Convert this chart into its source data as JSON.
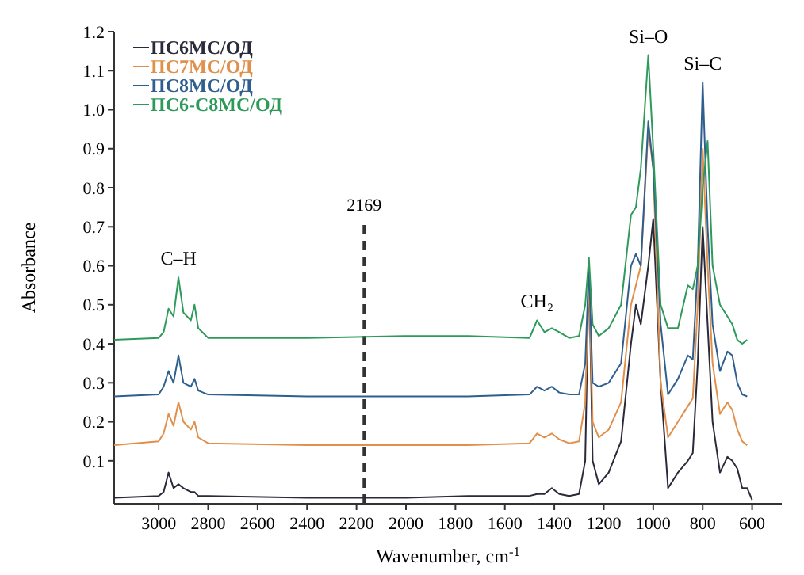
{
  "chart_data": {
    "type": "line",
    "xlabel": "Wavenumber, cm$^{-1}$",
    "ylabel": "Absorbance",
    "xlim": [
      3180,
      480
    ],
    "xticks": [
      3000,
      2800,
      2600,
      2400,
      2200,
      2000,
      1800,
      1600,
      1400,
      1200,
      1000,
      800,
      600
    ],
    "ylim": [
      -0.01,
      1.2
    ],
    "yticks": [
      0.1,
      0.2,
      0.3,
      0.4,
      0.5,
      0.6,
      0.7,
      0.8,
      0.9,
      {
        "value": 1,
        "label": "1.0"
      },
      1.1,
      1.2
    ],
    "legend": "top left",
    "line_style": "solid",
    "ref_lines": [
      {
        "axis": "x",
        "value": 2169,
        "label": "2169",
        "color": "#333333",
        "line_style": "dashed"
      }
    ],
    "annotations": [
      {
        "text": "C–H",
        "x": 2920,
        "y": 0.57
      },
      {
        "text": "CH₂",
        "x": 1470,
        "y": 0.46
      },
      {
        "text": "Si–O",
        "x": 1020,
        "y": 1.14
      },
      {
        "text": "Si–C",
        "x": 800,
        "y": 1.07
      }
    ],
    "series": [
      {
        "name": "ПС6МС/ОД",
        "color": "#2a2a3a",
        "x": [
          3180,
          3000,
          2980,
          2960,
          2940,
          2920,
          2900,
          2870,
          2855,
          2840,
          2800,
          2400,
          2000,
          1750,
          1500,
          1470,
          1440,
          1410,
          1380,
          1340,
          1300,
          1275,
          1260,
          1245,
          1220,
          1180,
          1130,
          1090,
          1070,
          1050,
          1020,
          1000,
          970,
          940,
          900,
          860,
          840,
          820,
          800,
          780,
          760,
          730,
          700,
          680,
          660,
          640,
          620,
          600
        ],
        "values": [
          0.005,
          0.01,
          0.02,
          0.07,
          0.03,
          0.04,
          0.03,
          0.02,
          0.02,
          0.01,
          0.01,
          0.005,
          0.005,
          0.01,
          0.01,
          0.015,
          0.015,
          0.03,
          0.015,
          0.01,
          0.015,
          0.1,
          0.6,
          0.1,
          0.04,
          0.07,
          0.15,
          0.4,
          0.5,
          0.45,
          0.6,
          0.72,
          0.3,
          0.03,
          0.07,
          0.1,
          0.12,
          0.35,
          0.7,
          0.45,
          0.2,
          0.07,
          0.11,
          0.1,
          0.08,
          0.03,
          0.03,
          0.0
        ]
      },
      {
        "name": "ПС7МС/ОД",
        "color": "#e0904a",
        "x": [
          3180,
          3000,
          2980,
          2960,
          2940,
          2920,
          2900,
          2870,
          2855,
          2840,
          2800,
          2400,
          2000,
          1750,
          1500,
          1470,
          1440,
          1410,
          1380,
          1340,
          1300,
          1275,
          1260,
          1245,
          1220,
          1180,
          1130,
          1090,
          1070,
          1050,
          1020,
          1000,
          970,
          940,
          900,
          860,
          840,
          820,
          800,
          780,
          760,
          730,
          700,
          680,
          660,
          640,
          620
        ],
        "values": [
          0.14,
          0.15,
          0.17,
          0.22,
          0.19,
          0.25,
          0.2,
          0.18,
          0.2,
          0.16,
          0.145,
          0.14,
          0.14,
          0.14,
          0.145,
          0.17,
          0.16,
          0.17,
          0.155,
          0.145,
          0.15,
          0.25,
          0.58,
          0.2,
          0.16,
          0.18,
          0.25,
          0.5,
          0.55,
          0.6,
          0.95,
          0.85,
          0.3,
          0.16,
          0.2,
          0.24,
          0.26,
          0.5,
          0.9,
          0.6,
          0.35,
          0.22,
          0.25,
          0.23,
          0.18,
          0.15,
          0.14
        ]
      },
      {
        "name": "ПС8МС/ОД",
        "color": "#2f5f8f",
        "x": [
          3180,
          3000,
          2980,
          2960,
          2940,
          2920,
          2900,
          2870,
          2855,
          2840,
          2800,
          2400,
          2000,
          1750,
          1500,
          1470,
          1440,
          1410,
          1380,
          1340,
          1300,
          1275,
          1260,
          1245,
          1220,
          1180,
          1130,
          1090,
          1070,
          1050,
          1020,
          1000,
          970,
          940,
          900,
          860,
          840,
          820,
          800,
          780,
          760,
          730,
          700,
          680,
          660,
          640,
          620
        ],
        "values": [
          0.265,
          0.27,
          0.29,
          0.33,
          0.3,
          0.37,
          0.3,
          0.29,
          0.31,
          0.28,
          0.27,
          0.265,
          0.265,
          0.265,
          0.27,
          0.29,
          0.28,
          0.29,
          0.275,
          0.27,
          0.27,
          0.35,
          0.6,
          0.3,
          0.29,
          0.3,
          0.35,
          0.6,
          0.63,
          0.6,
          0.97,
          0.85,
          0.45,
          0.27,
          0.31,
          0.37,
          0.36,
          0.6,
          1.07,
          0.7,
          0.45,
          0.33,
          0.38,
          0.37,
          0.3,
          0.27,
          0.265
        ]
      },
      {
        "name": "ПС6-С8МС/ОД",
        "color": "#2e9a5a",
        "x": [
          3180,
          3000,
          2980,
          2960,
          2940,
          2920,
          2900,
          2870,
          2855,
          2840,
          2800,
          2400,
          2000,
          1750,
          1500,
          1470,
          1440,
          1410,
          1380,
          1340,
          1300,
          1275,
          1260,
          1245,
          1220,
          1180,
          1130,
          1090,
          1070,
          1050,
          1020,
          1000,
          970,
          940,
          900,
          860,
          840,
          820,
          800,
          780,
          760,
          730,
          700,
          680,
          660,
          640,
          620
        ],
        "values": [
          0.41,
          0.415,
          0.43,
          0.49,
          0.47,
          0.57,
          0.48,
          0.46,
          0.5,
          0.44,
          0.415,
          0.415,
          0.42,
          0.42,
          0.415,
          0.46,
          0.43,
          0.44,
          0.43,
          0.415,
          0.42,
          0.5,
          0.62,
          0.45,
          0.42,
          0.44,
          0.5,
          0.73,
          0.75,
          0.85,
          1.14,
          0.9,
          0.5,
          0.44,
          0.44,
          0.55,
          0.54,
          0.6,
          0.8,
          0.92,
          0.6,
          0.5,
          0.47,
          0.45,
          0.41,
          0.4,
          0.41
        ]
      }
    ]
  }
}
